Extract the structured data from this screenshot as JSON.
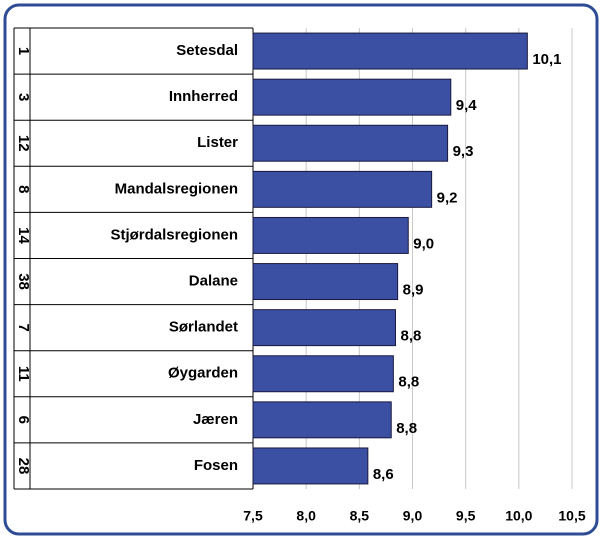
{
  "chart_data": {
    "type": "bar",
    "orientation": "horizontal",
    "ranks": [
      "1",
      "3",
      "12",
      "8",
      "14",
      "38",
      "7",
      "11",
      "6",
      "28"
    ],
    "categories": [
      "Setesdal",
      "Innherred",
      "Lister",
      "Mandalsregionen",
      "Stjørdalsregionen",
      "Dalane",
      "Sørlandet",
      "Øygarden",
      "Jæren",
      "Fosen"
    ],
    "values": [
      10.08,
      9.36,
      9.33,
      9.18,
      8.96,
      8.86,
      8.84,
      8.82,
      8.8,
      8.58
    ],
    "value_labels": [
      "10,1",
      "9,4",
      "9,3",
      "9,2",
      "9,0",
      "8,9",
      "8,8",
      "8,8",
      "8,8",
      "8,6"
    ],
    "color": "#3b4fa3",
    "xlim": [
      7.5,
      10.5
    ],
    "xticks": [
      {
        "value": 7.5,
        "label": "7,5"
      },
      {
        "value": 8,
        "label": "8,0"
      },
      {
        "value": 8.5,
        "label": "8,5"
      },
      {
        "value": 9,
        "label": "9,0"
      },
      {
        "value": 9.5,
        "label": "9,5"
      },
      {
        "value": 10,
        "label": "10,0"
      },
      {
        "value": 10.5,
        "label": "10,5"
      }
    ],
    "grid": true
  }
}
